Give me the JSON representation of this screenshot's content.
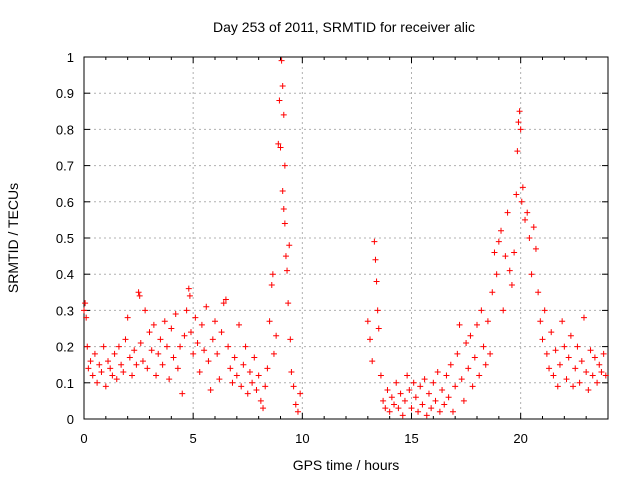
{
  "chart_data": {
    "type": "scatter",
    "title": "Day 253 of 2011, SRMTID for receiver alic",
    "xlabel": "GPS time / hours",
    "ylabel": "SRMTID / TECUs",
    "xlim": [
      0,
      24
    ],
    "ylim": [
      0,
      1
    ],
    "xticks": [
      0,
      5,
      10,
      15,
      20
    ],
    "yticks": [
      0,
      0.1,
      0.2,
      0.3,
      0.4,
      0.5,
      0.6,
      0.7,
      0.8,
      0.9,
      1
    ],
    "grid": true,
    "marker": "plus",
    "color": "#ff0000",
    "series": [
      {
        "name": "SRMTID",
        "points": [
          [
            0.0,
            0.3
          ],
          [
            0.05,
            0.32
          ],
          [
            0.1,
            0.28
          ],
          [
            0.15,
            0.2
          ],
          [
            0.2,
            0.14
          ],
          [
            0.3,
            0.16
          ],
          [
            0.4,
            0.12
          ],
          [
            0.5,
            0.18
          ],
          [
            0.6,
            0.1
          ],
          [
            0.7,
            0.15
          ],
          [
            0.8,
            0.13
          ],
          [
            0.9,
            0.2
          ],
          [
            1.0,
            0.09
          ],
          [
            1.1,
            0.16
          ],
          [
            1.2,
            0.14
          ],
          [
            1.3,
            0.12
          ],
          [
            1.4,
            0.18
          ],
          [
            1.5,
            0.11
          ],
          [
            1.6,
            0.2
          ],
          [
            1.7,
            0.15
          ],
          [
            1.8,
            0.13
          ],
          [
            1.9,
            0.22
          ],
          [
            2.0,
            0.28
          ],
          [
            2.1,
            0.17
          ],
          [
            2.2,
            0.12
          ],
          [
            2.3,
            0.19
          ],
          [
            2.4,
            0.15
          ],
          [
            2.5,
            0.35
          ],
          [
            2.55,
            0.34
          ],
          [
            2.6,
            0.21
          ],
          [
            2.7,
            0.16
          ],
          [
            2.8,
            0.3
          ],
          [
            2.9,
            0.14
          ],
          [
            3.0,
            0.24
          ],
          [
            3.1,
            0.19
          ],
          [
            3.2,
            0.26
          ],
          [
            3.3,
            0.12
          ],
          [
            3.4,
            0.18
          ],
          [
            3.5,
            0.22
          ],
          [
            3.6,
            0.15
          ],
          [
            3.7,
            0.27
          ],
          [
            3.8,
            0.2
          ],
          [
            3.9,
            0.11
          ],
          [
            4.0,
            0.25
          ],
          [
            4.1,
            0.17
          ],
          [
            4.2,
            0.29
          ],
          [
            4.3,
            0.14
          ],
          [
            4.4,
            0.2
          ],
          [
            4.5,
            0.07
          ],
          [
            4.6,
            0.23
          ],
          [
            4.7,
            0.3
          ],
          [
            4.8,
            0.36
          ],
          [
            4.85,
            0.34
          ],
          [
            4.9,
            0.24
          ],
          [
            5.0,
            0.18
          ],
          [
            5.1,
            0.28
          ],
          [
            5.2,
            0.21
          ],
          [
            5.3,
            0.13
          ],
          [
            5.4,
            0.26
          ],
          [
            5.5,
            0.19
          ],
          [
            5.6,
            0.31
          ],
          [
            5.7,
            0.16
          ],
          [
            5.8,
            0.08
          ],
          [
            5.9,
            0.22
          ],
          [
            6.0,
            0.27
          ],
          [
            6.1,
            0.18
          ],
          [
            6.2,
            0.11
          ],
          [
            6.3,
            0.24
          ],
          [
            6.4,
            0.32
          ],
          [
            6.5,
            0.33
          ],
          [
            6.6,
            0.2
          ],
          [
            6.7,
            0.14
          ],
          [
            6.8,
            0.1
          ],
          [
            6.9,
            0.17
          ],
          [
            7.0,
            0.12
          ],
          [
            7.1,
            0.26
          ],
          [
            7.2,
            0.09
          ],
          [
            7.3,
            0.15
          ],
          [
            7.4,
            0.2
          ],
          [
            7.5,
            0.07
          ],
          [
            7.6,
            0.13
          ],
          [
            7.7,
            0.1
          ],
          [
            7.8,
            0.17
          ],
          [
            7.9,
            0.08
          ],
          [
            8.0,
            0.12
          ],
          [
            8.1,
            0.05
          ],
          [
            8.2,
            0.03
          ],
          [
            8.3,
            0.09
          ],
          [
            8.4,
            0.14
          ],
          [
            8.5,
            0.27
          ],
          [
            8.6,
            0.37
          ],
          [
            8.65,
            0.4
          ],
          [
            8.7,
            0.18
          ],
          [
            8.8,
            0.23
          ],
          [
            8.9,
            0.76
          ],
          [
            8.95,
            0.88
          ],
          [
            9.0,
            0.75
          ],
          [
            9.05,
            0.99
          ],
          [
            9.1,
            0.92
          ],
          [
            9.15,
            0.84
          ],
          [
            9.2,
            0.54
          ],
          [
            9.25,
            0.45
          ],
          [
            9.3,
            0.41
          ],
          [
            9.35,
            0.32
          ],
          [
            9.4,
            0.48
          ],
          [
            9.45,
            0.22
          ],
          [
            9.5,
            0.13
          ],
          [
            9.6,
            0.09
          ],
          [
            9.7,
            0.04
          ],
          [
            9.8,
            0.02
          ],
          [
            9.9,
            0.07
          ],
          [
            9.1,
            0.63
          ],
          [
            9.15,
            0.58
          ],
          [
            9.2,
            0.7
          ],
          [
            13.0,
            0.27
          ],
          [
            13.1,
            0.22
          ],
          [
            13.2,
            0.16
          ],
          [
            13.3,
            0.49
          ],
          [
            13.35,
            0.44
          ],
          [
            13.4,
            0.38
          ],
          [
            13.45,
            0.3
          ],
          [
            13.5,
            0.25
          ],
          [
            13.6,
            0.12
          ],
          [
            13.7,
            0.05
          ],
          [
            13.8,
            0.03
          ],
          [
            13.9,
            0.08
          ],
          [
            14.0,
            0.02
          ],
          [
            14.1,
            0.06
          ],
          [
            14.2,
            0.04
          ],
          [
            14.3,
            0.1
          ],
          [
            14.4,
            0.03
          ],
          [
            14.5,
            0.07
          ],
          [
            14.6,
            0.01
          ],
          [
            14.7,
            0.05
          ],
          [
            14.8,
            0.12
          ],
          [
            14.9,
            0.08
          ],
          [
            15.0,
            0.03
          ],
          [
            15.1,
            0.1
          ],
          [
            15.2,
            0.06
          ],
          [
            15.3,
            0.02
          ],
          [
            15.4,
            0.09
          ],
          [
            15.5,
            0.04
          ],
          [
            15.6,
            0.11
          ],
          [
            15.7,
            0.01
          ],
          [
            15.8,
            0.07
          ],
          [
            15.9,
            0.03
          ],
          [
            16.0,
            0.1
          ],
          [
            16.1,
            0.05
          ],
          [
            16.2,
            0.13
          ],
          [
            16.3,
            0.02
          ],
          [
            16.4,
            0.08
          ],
          [
            16.5,
            0.04
          ],
          [
            16.6,
            0.12
          ],
          [
            16.7,
            0.06
          ],
          [
            16.8,
            0.15
          ],
          [
            16.9,
            0.02
          ],
          [
            17.0,
            0.09
          ],
          [
            17.1,
            0.18
          ],
          [
            17.2,
            0.26
          ],
          [
            17.3,
            0.11
          ],
          [
            17.4,
            0.05
          ],
          [
            17.5,
            0.21
          ],
          [
            17.6,
            0.14
          ],
          [
            17.7,
            0.23
          ],
          [
            17.8,
            0.09
          ],
          [
            17.9,
            0.17
          ],
          [
            18.0,
            0.26
          ],
          [
            18.1,
            0.12
          ],
          [
            18.2,
            0.3
          ],
          [
            18.3,
            0.2
          ],
          [
            18.4,
            0.15
          ],
          [
            18.5,
            0.27
          ],
          [
            18.6,
            0.18
          ],
          [
            18.7,
            0.35
          ],
          [
            18.8,
            0.46
          ],
          [
            18.9,
            0.4
          ],
          [
            19.0,
            0.49
          ],
          [
            19.1,
            0.52
          ],
          [
            19.2,
            0.3
          ],
          [
            19.3,
            0.45
          ],
          [
            19.4,
            0.57
          ],
          [
            19.5,
            0.41
          ],
          [
            19.6,
            0.37
          ],
          [
            19.7,
            0.46
          ],
          [
            19.8,
            0.62
          ],
          [
            19.85,
            0.74
          ],
          [
            19.9,
            0.82
          ],
          [
            19.95,
            0.85
          ],
          [
            20.0,
            0.8
          ],
          [
            20.05,
            0.6
          ],
          [
            20.1,
            0.64
          ],
          [
            20.2,
            0.55
          ],
          [
            20.3,
            0.57
          ],
          [
            20.4,
            0.5
          ],
          [
            20.5,
            0.4
          ],
          [
            20.6,
            0.53
          ],
          [
            20.7,
            0.47
          ],
          [
            20.8,
            0.35
          ],
          [
            20.9,
            0.27
          ],
          [
            21.0,
            0.22
          ],
          [
            21.1,
            0.3
          ],
          [
            21.2,
            0.18
          ],
          [
            21.3,
            0.14
          ],
          [
            21.4,
            0.24
          ],
          [
            21.5,
            0.12
          ],
          [
            21.6,
            0.19
          ],
          [
            21.7,
            0.09
          ],
          [
            21.8,
            0.15
          ],
          [
            21.9,
            0.27
          ],
          [
            22.0,
            0.2
          ],
          [
            22.1,
            0.11
          ],
          [
            22.2,
            0.17
          ],
          [
            22.3,
            0.23
          ],
          [
            22.4,
            0.09
          ],
          [
            22.5,
            0.14
          ],
          [
            22.6,
            0.2
          ],
          [
            22.7,
            0.1
          ],
          [
            22.8,
            0.16
          ],
          [
            22.9,
            0.28
          ],
          [
            23.0,
            0.13
          ],
          [
            23.1,
            0.08
          ],
          [
            23.2,
            0.19
          ],
          [
            23.3,
            0.12
          ],
          [
            23.4,
            0.17
          ],
          [
            23.5,
            0.1
          ],
          [
            23.6,
            0.15
          ],
          [
            23.7,
            0.13
          ],
          [
            23.8,
            0.18
          ],
          [
            23.9,
            0.12
          ]
        ]
      }
    ]
  }
}
